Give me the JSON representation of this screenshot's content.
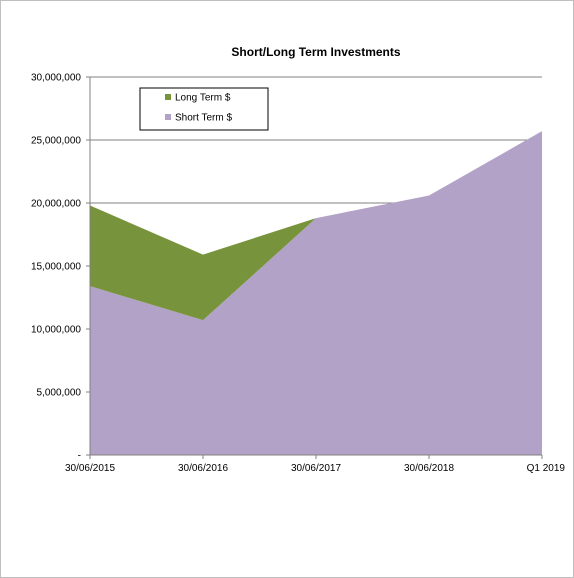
{
  "chart_data": {
    "type": "area",
    "stacked": true,
    "title": "Short/Long Term Investments",
    "categories": [
      "30/06/2015",
      "30/06/2016",
      "30/06/2017",
      "30/06/2018",
      "Q1 2019"
    ],
    "series": [
      {
        "name": "Short Term $",
        "color": "#b3a2c7",
        "values": [
          13400000,
          10700000,
          18800000,
          20600000,
          25700000
        ]
      },
      {
        "name": "Long Term $",
        "color": "#77933c",
        "values": [
          6400000,
          5200000,
          0,
          0,
          0
        ]
      }
    ],
    "y_ticks": [
      {
        "value": 0,
        "label": "-"
      },
      {
        "value": 5000000,
        "label": "5,000,000"
      },
      {
        "value": 10000000,
        "label": "10,000,000"
      },
      {
        "value": 15000000,
        "label": "15,000,000"
      },
      {
        "value": 20000000,
        "label": "20,000,000"
      },
      {
        "value": 25000000,
        "label": "25,000,000"
      },
      {
        "value": 30000000,
        "label": "30,000,000"
      }
    ],
    "ylim": [
      0,
      30000000
    ],
    "grid": true,
    "legend_position": "top-left",
    "legend_order": [
      "Long Term $",
      "Short Term $"
    ],
    "gridline_color": "#808080",
    "axis_color": "#808080"
  }
}
